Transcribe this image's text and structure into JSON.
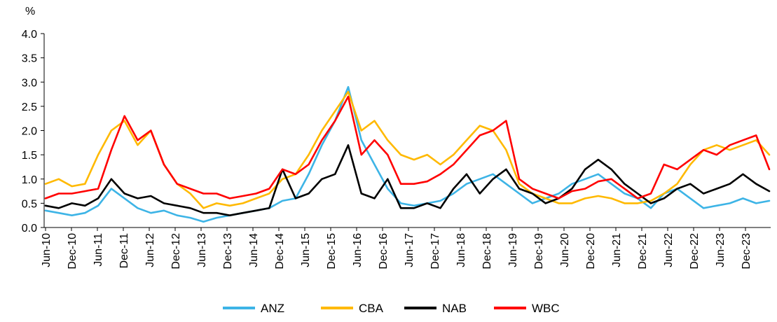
{
  "chart_data": {
    "type": "line",
    "title": "",
    "xlabel": "",
    "ylabel": "%",
    "ylim": [
      0,
      4
    ],
    "yticks": [
      "0.0",
      "0.5",
      "1.0",
      "1.5",
      "2.0",
      "2.5",
      "3.0",
      "3.5",
      "4.0"
    ],
    "xticks": [
      "Jun-10",
      "Dec-10",
      "Jun-11",
      "Dec-11",
      "Jun-12",
      "Dec-12",
      "Jun-13",
      "Dec-13",
      "Jun-14",
      "Dec-14",
      "Jun-15",
      "Dec-15",
      "Jun-16",
      "Dec-16",
      "Jun-17",
      "Dec-17",
      "Jun-18",
      "Dec-18",
      "Jun-19",
      "Dec-19",
      "Jun-20",
      "Dec-20",
      "Jun-21",
      "Dec-21",
      "Jun-22",
      "Dec-22",
      "Jun-23",
      "Dec-23"
    ],
    "x": [
      "Jun-10",
      "Sep-10",
      "Dec-10",
      "Mar-11",
      "Jun-11",
      "Sep-11",
      "Dec-11",
      "Mar-12",
      "Jun-12",
      "Sep-12",
      "Dec-12",
      "Mar-13",
      "Jun-13",
      "Sep-13",
      "Dec-13",
      "Mar-14",
      "Jun-14",
      "Sep-14",
      "Dec-14",
      "Mar-15",
      "Jun-15",
      "Sep-15",
      "Dec-15",
      "Mar-16",
      "Jun-16",
      "Sep-16",
      "Dec-16",
      "Mar-17",
      "Jun-17",
      "Sep-17",
      "Dec-17",
      "Mar-18",
      "Jun-18",
      "Sep-18",
      "Dec-18",
      "Mar-19",
      "Jun-19",
      "Sep-19",
      "Dec-19",
      "Mar-20",
      "Jun-20",
      "Sep-20",
      "Dec-20",
      "Mar-21",
      "Jun-21",
      "Sep-21",
      "Dec-21",
      "Mar-22",
      "Jun-22",
      "Sep-22",
      "Dec-22",
      "Mar-23",
      "Jun-23",
      "Sep-23",
      "Dec-23",
      "Mar-24"
    ],
    "grid": false,
    "legend_position": "bottom",
    "series": [
      {
        "name": "ANZ",
        "color": "#3db4e6",
        "values": [
          0.35,
          0.3,
          0.25,
          0.3,
          0.45,
          0.8,
          0.6,
          0.4,
          0.3,
          0.35,
          0.25,
          0.2,
          0.12,
          0.2,
          0.25,
          0.3,
          0.35,
          0.4,
          0.55,
          0.6,
          1.1,
          1.7,
          2.2,
          2.9,
          1.8,
          1.3,
          0.8,
          0.5,
          0.45,
          0.5,
          0.55,
          0.7,
          0.9,
          1.0,
          1.1,
          0.9,
          0.7,
          0.5,
          0.6,
          0.7,
          0.9,
          1.0,
          1.1,
          0.9,
          0.7,
          0.6,
          0.4,
          0.7,
          0.8,
          0.6,
          0.4,
          0.45,
          0.5,
          0.6,
          0.5,
          0.55
        ]
      },
      {
        "name": "CBA",
        "color": "#ffb900",
        "values": [
          0.9,
          1.0,
          0.85,
          0.9,
          1.5,
          2.0,
          2.2,
          1.7,
          2.0,
          1.3,
          0.9,
          0.7,
          0.4,
          0.5,
          0.45,
          0.5,
          0.6,
          0.7,
          1.0,
          1.1,
          1.5,
          2.0,
          2.4,
          2.8,
          2.0,
          2.2,
          1.8,
          1.5,
          1.4,
          1.5,
          1.3,
          1.5,
          1.8,
          2.1,
          2.0,
          1.6,
          0.9,
          0.7,
          0.6,
          0.5,
          0.5,
          0.6,
          0.65,
          0.6,
          0.5,
          0.5,
          0.55,
          0.7,
          0.9,
          1.3,
          1.6,
          1.7,
          1.6,
          1.7,
          1.8,
          1.5
        ]
      },
      {
        "name": "NAB",
        "color": "#000000",
        "values": [
          0.45,
          0.4,
          0.5,
          0.45,
          0.6,
          1.0,
          0.7,
          0.6,
          0.65,
          0.5,
          0.45,
          0.4,
          0.3,
          0.3,
          0.25,
          0.3,
          0.35,
          0.4,
          1.2,
          0.6,
          0.7,
          1.0,
          1.1,
          1.7,
          0.7,
          0.6,
          1.0,
          0.4,
          0.4,
          0.5,
          0.4,
          0.8,
          1.1,
          0.7,
          1.0,
          1.2,
          0.8,
          0.7,
          0.5,
          0.6,
          0.8,
          1.2,
          1.4,
          1.2,
          0.9,
          0.7,
          0.5,
          0.6,
          0.8,
          0.9,
          0.7,
          0.8,
          0.9,
          1.1,
          0.9,
          0.75
        ]
      },
      {
        "name": "WBC",
        "color": "#ff0000",
        "values": [
          0.6,
          0.7,
          0.7,
          0.75,
          0.8,
          1.6,
          2.3,
          1.8,
          2.0,
          1.3,
          0.9,
          0.8,
          0.7,
          0.7,
          0.6,
          0.65,
          0.7,
          0.8,
          1.2,
          1.1,
          1.3,
          1.8,
          2.2,
          2.7,
          1.5,
          1.8,
          1.5,
          0.9,
          0.9,
          0.95,
          1.1,
          1.3,
          1.6,
          1.9,
          2.0,
          2.2,
          1.0,
          0.8,
          0.7,
          0.6,
          0.75,
          0.8,
          0.95,
          1.0,
          0.8,
          0.6,
          0.7,
          1.3,
          1.2,
          1.4,
          1.6,
          1.5,
          1.7,
          1.8,
          1.9,
          1.2
        ]
      }
    ]
  }
}
